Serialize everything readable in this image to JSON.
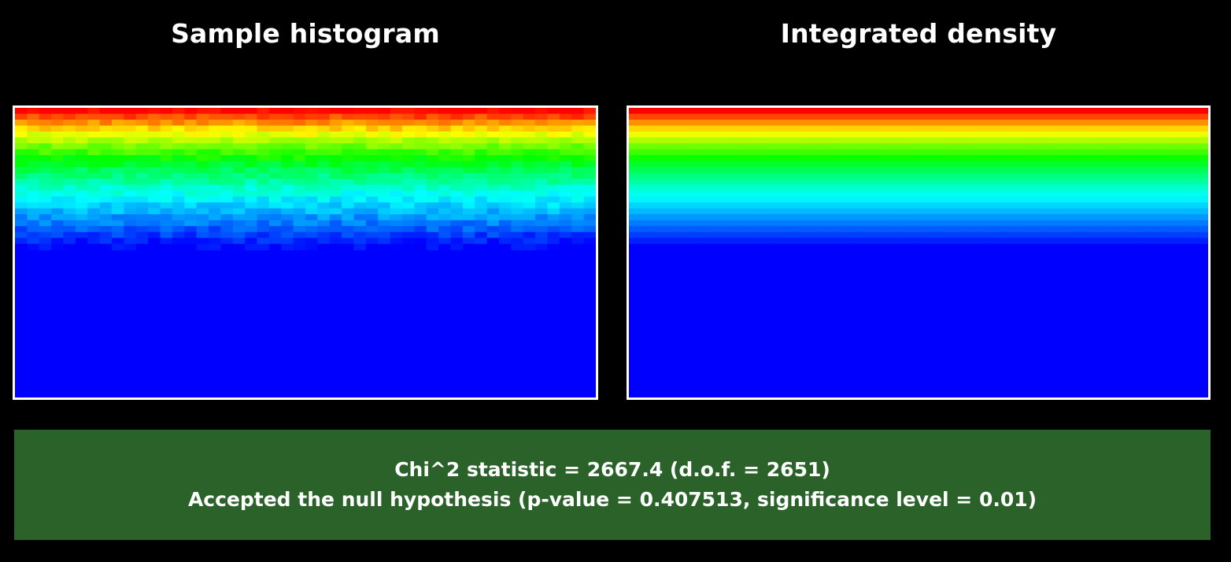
{
  "panels": {
    "left_title": "Sample histogram",
    "right_title": "Integrated density"
  },
  "chart_data": [
    {
      "type": "heatmap",
      "title": "Sample histogram",
      "colormap": [
        "#0000ff",
        "#00ffff",
        "#00ff00",
        "#ffff00",
        "#ff0000"
      ],
      "columns": 48,
      "row_profile": [
        1.0,
        0.93,
        0.86,
        0.79,
        0.73,
        0.67,
        0.61,
        0.56,
        0.51,
        0.46,
        0.42,
        0.38,
        0.34,
        0.3,
        0.27,
        0.24,
        0.21,
        0.18,
        0.15,
        0.12,
        0.09,
        0.06,
        0.03,
        0.0
      ],
      "noise": 0.035
    },
    {
      "type": "heatmap",
      "title": "Integrated density",
      "colormap": [
        "#0000ff",
        "#00ffff",
        "#00ff00",
        "#ffff00",
        "#ff0000"
      ],
      "columns": 48,
      "row_profile": [
        1.0,
        0.93,
        0.86,
        0.79,
        0.73,
        0.67,
        0.61,
        0.56,
        0.51,
        0.46,
        0.42,
        0.38,
        0.34,
        0.3,
        0.27,
        0.24,
        0.21,
        0.18,
        0.15,
        0.12,
        0.09,
        0.06,
        0.03,
        0.0
      ],
      "noise": 0
    }
  ],
  "result": {
    "line1": "Chi^2 statistic = 2667.4 (d.o.f. = 2651)",
    "line2": "Accepted the null hypothesis (p-value = 0.407513, significance level = 0.01)",
    "background_color": "#2a622a"
  }
}
